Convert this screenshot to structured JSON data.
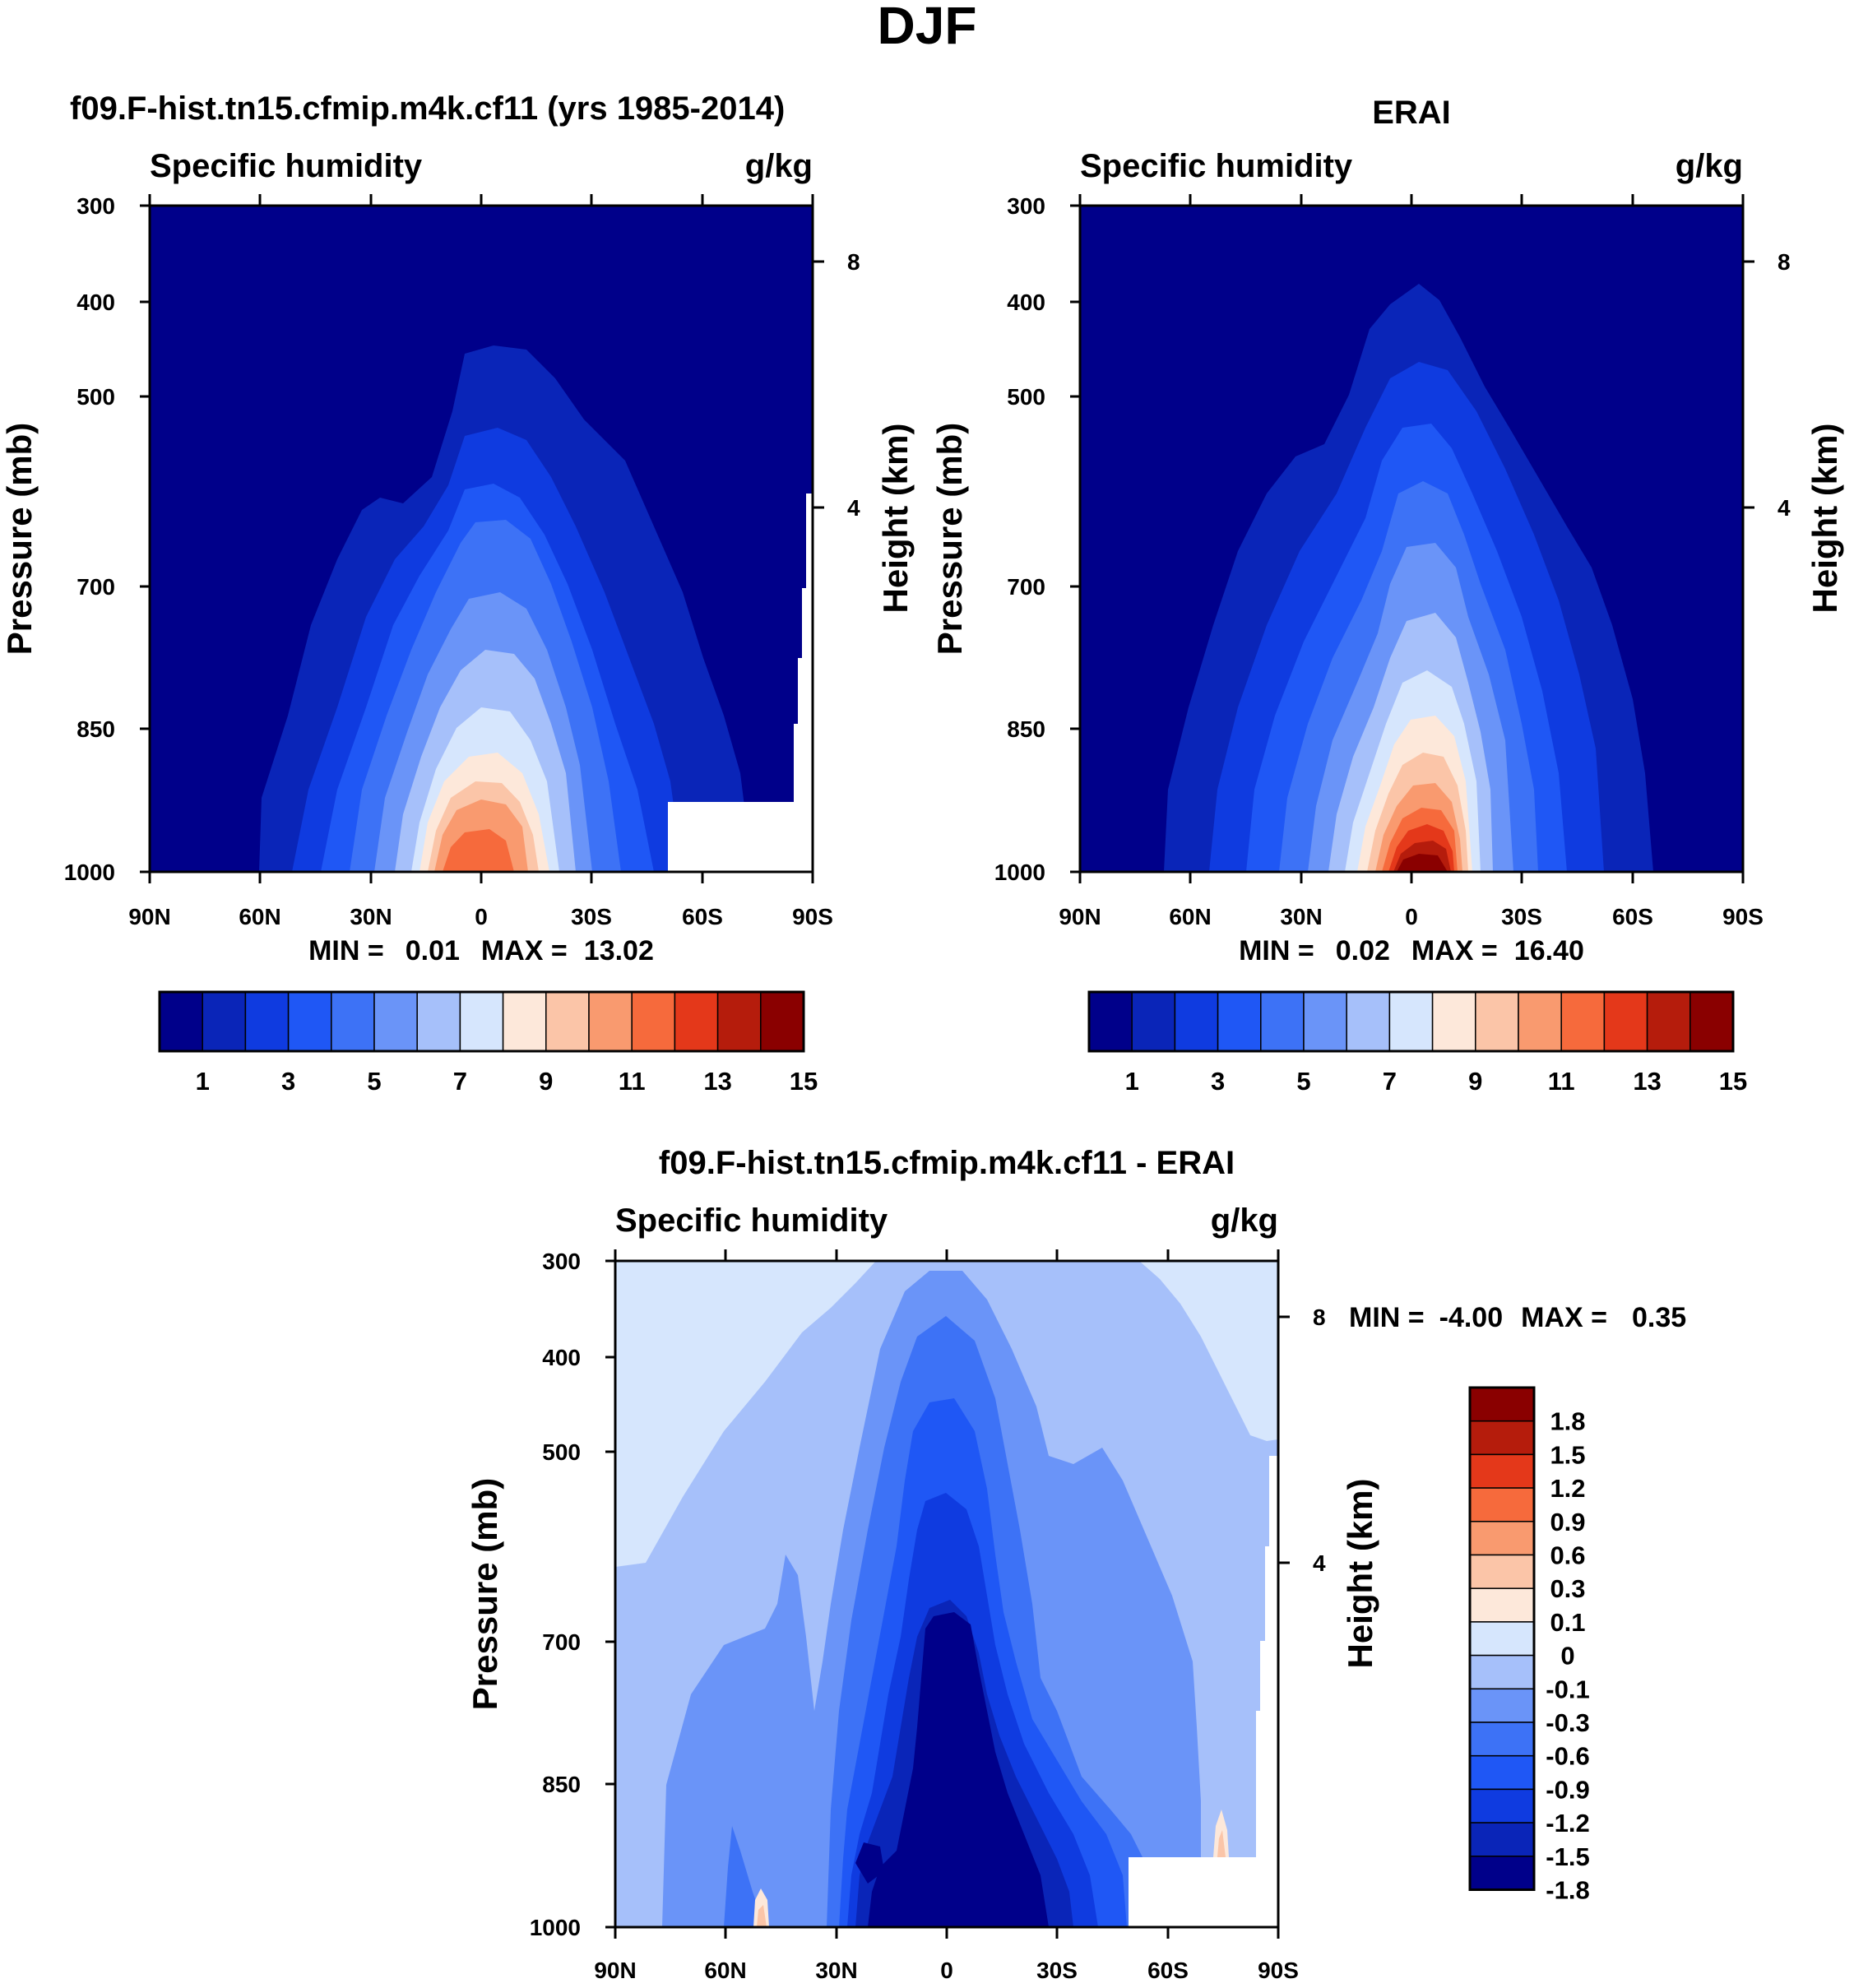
{
  "main_title": "DJF",
  "chart_data": [
    {
      "type": "heatmap",
      "title": "f09.F-hist.tn15.cfmip.m4k.cf11 (yrs 1985-2014)",
      "left_string": "Specific humidity",
      "right_string": "g/kg",
      "xlabel": "",
      "ylabel": "Pressure (mb)",
      "y2label": "Height (km)",
      "x_tick_labels": [
        "90N",
        "60N",
        "30N",
        "0",
        "30S",
        "60S",
        "90S"
      ],
      "y_tick_labels": [
        "300",
        "400",
        "500",
        "700",
        "850",
        "1000"
      ],
      "y2_tick_labels": [
        "8",
        "4"
      ],
      "xlim": [
        90,
        -90
      ],
      "ylim": [
        1000,
        300
      ],
      "stats": {
        "min_label": "MIN =",
        "min": "0.01",
        "max_label": "MAX =",
        "max": "13.02"
      },
      "contour_levels": [
        1,
        2,
        3,
        4,
        5,
        6,
        7,
        8,
        9,
        10,
        11,
        12,
        13,
        14,
        15
      ],
      "colorbar_labels": [
        "1",
        "3",
        "5",
        "7",
        "9",
        "11",
        "13",
        "15"
      ],
      "field_peak": {
        "lat": -2,
        "plev": 1000,
        "value": 13.02
      },
      "missing_region": "surface near 60S-90S"
    },
    {
      "type": "heatmap",
      "title": "ERAI",
      "left_string": "Specific humidity",
      "right_string": "g/kg",
      "xlabel": "",
      "ylabel": "Pressure (mb)",
      "y2label": "Height (km)",
      "x_tick_labels": [
        "90N",
        "60N",
        "30N",
        "0",
        "30S",
        "60S",
        "90S"
      ],
      "y_tick_labels": [
        "300",
        "400",
        "500",
        "700",
        "850",
        "1000"
      ],
      "y2_tick_labels": [
        "8",
        "4"
      ],
      "xlim": [
        90,
        -90
      ],
      "ylim": [
        1000,
        300
      ],
      "stats": {
        "min_label": "MIN =",
        "min": "0.02",
        "max_label": "MAX =",
        "max": "16.40"
      },
      "contour_levels": [
        1,
        2,
        3,
        4,
        5,
        6,
        7,
        8,
        9,
        10,
        11,
        12,
        13,
        14,
        15
      ],
      "colorbar_labels": [
        "1",
        "3",
        "5",
        "7",
        "9",
        "11",
        "13",
        "15"
      ],
      "field_peak": {
        "lat": -3,
        "plev": 1000,
        "value": 16.4
      }
    },
    {
      "type": "heatmap",
      "title": "f09.F-hist.tn15.cfmip.m4k.cf11 - ERAI",
      "left_string": "Specific humidity",
      "right_string": "g/kg",
      "xlabel": "",
      "ylabel": "Pressure (mb)",
      "y2label": "Height (km)",
      "x_tick_labels": [
        "90N",
        "60N",
        "30N",
        "0",
        "30S",
        "60S",
        "90S"
      ],
      "y_tick_labels": [
        "300",
        "400",
        "500",
        "700",
        "850",
        "1000"
      ],
      "y2_tick_labels": [
        "8",
        "4"
      ],
      "xlim": [
        90,
        -90
      ],
      "ylim": [
        1000,
        300
      ],
      "stats": {
        "min_label": "MIN =",
        "min": "-4.00",
        "max_label": "MAX =",
        "max": "0.35"
      },
      "contour_levels": [
        -1.8,
        -1.5,
        -1.2,
        -0.9,
        -0.6,
        -0.3,
        -0.1,
        0,
        0.1,
        0.3,
        0.6,
        0.9,
        1.2,
        1.5,
        1.8
      ],
      "colorbar_labels": [
        "1.8",
        "1.5",
        "1.2",
        "0.9",
        "0.6",
        "0.3",
        "0.1",
        "0",
        "-0.1",
        "-0.3",
        "-0.6",
        "-0.9",
        "-1.2",
        "-1.5",
        "-1.8"
      ],
      "field_min": {
        "lat": -3,
        "plev": 1000,
        "value": -4.0
      }
    }
  ],
  "colors": {
    "colormap": [
      "#00008a",
      "#0a25b8",
      "#0f3be0",
      "#1f57f5",
      "#3d72f6",
      "#6a94f8",
      "#a6c0fa",
      "#d6e6fd",
      "#fde8da",
      "#fbc5a8",
      "#f99a6f",
      "#f66a3c",
      "#e4381a",
      "#b51c0c",
      "#8a0000"
    ],
    "missing": "#ffffff"
  }
}
